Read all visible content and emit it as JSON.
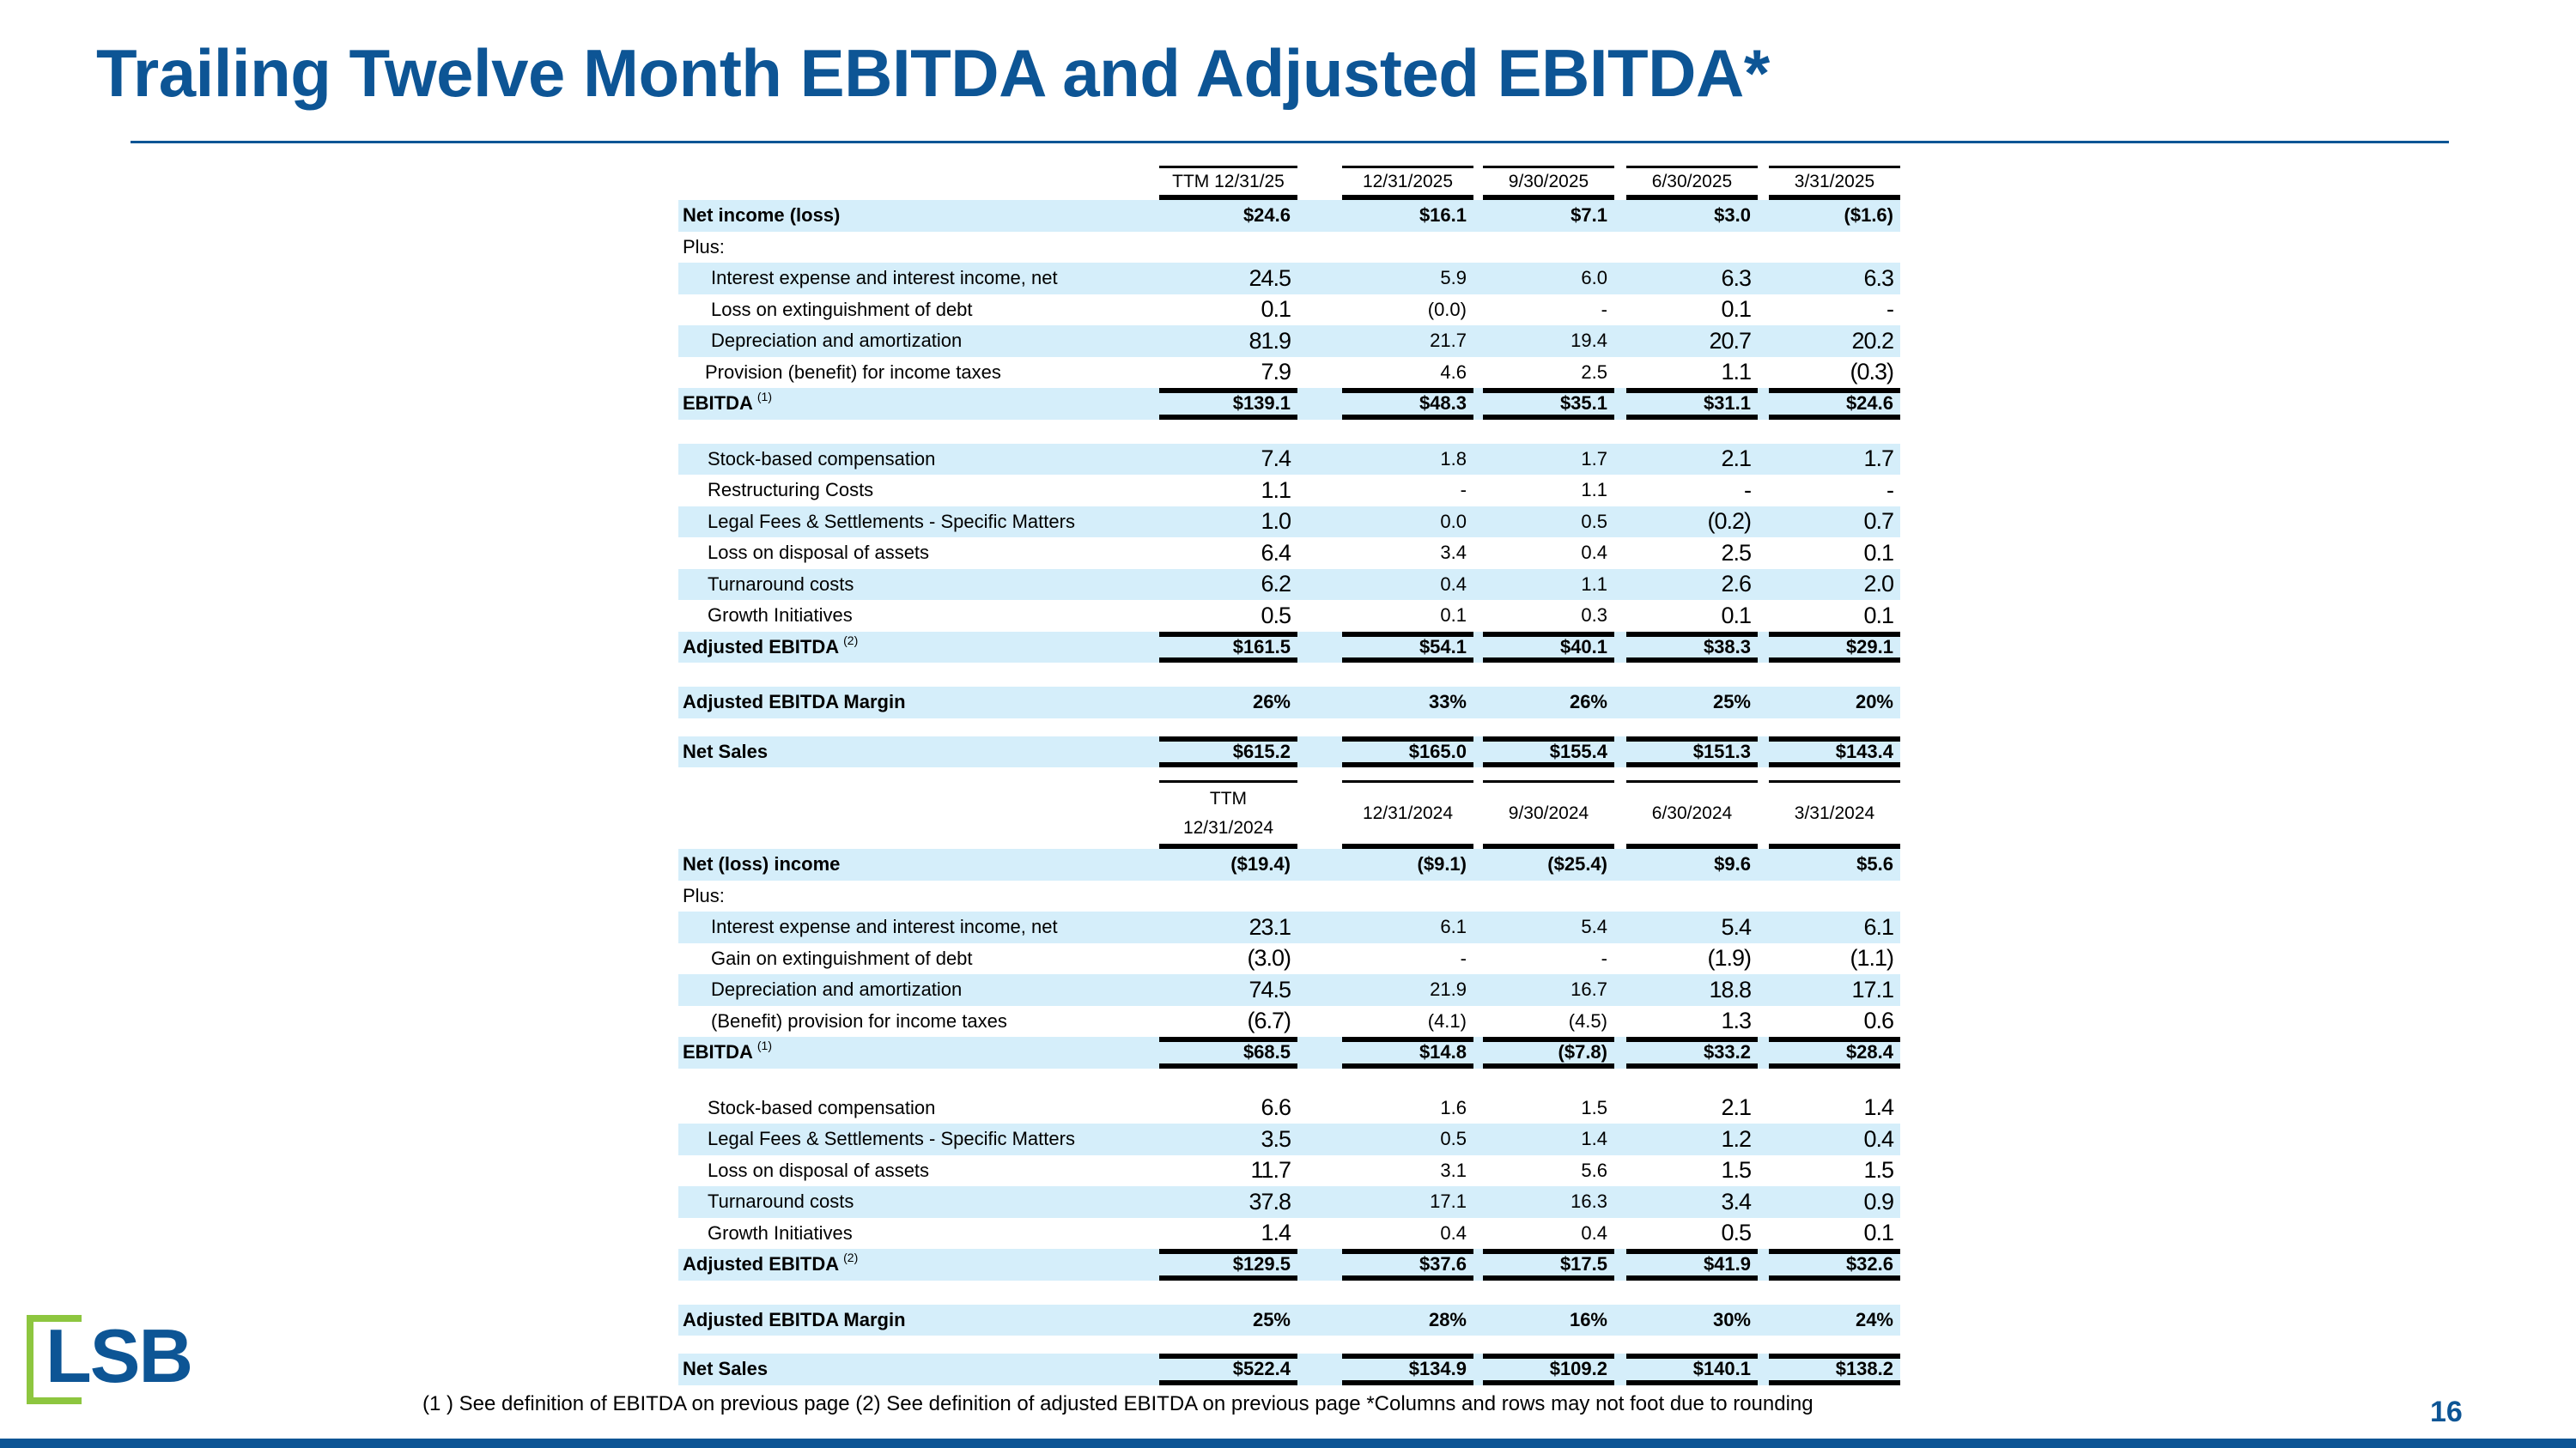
{
  "title": "Trailing Twelve Month EBITDA and Adjusted EBITDA*",
  "logo_text": "LSB",
  "page_number": "16",
  "footnote": "(1 ) See definition of EBITDA on previous page  (2) See definition of adjusted EBITDA on previous page   *Columns and rows may not foot due to rounding",
  "colors": {
    "brand_blue": "#0d5595",
    "row_shade": "#d5eefa",
    "logo_green": "#8dc63f"
  },
  "sections": [
    {
      "columns": [
        "TTM 12/31/25",
        "12/31/2025",
        "9/30/2025",
        "6/30/2025",
        "3/31/2025"
      ],
      "groups": [
        [
          {
            "label": "Net income (loss)",
            "style": "bold",
            "shade": true,
            "values": [
              "$24.6",
              "$16.1",
              "$7.1",
              "$3.0",
              "($1.6)"
            ]
          },
          {
            "label": "Plus:",
            "values": []
          },
          {
            "label": "Interest expense and interest income, net",
            "indent": 1,
            "shade": true,
            "values": [
              "24.5",
              "5.9",
              "6.0",
              "6.3",
              "6.3"
            ]
          },
          {
            "label": "Loss on extinguishment of debt",
            "indent": 1,
            "values": [
              "0.1",
              "(0.0)",
              "-",
              "0.1",
              "-"
            ]
          },
          {
            "label": "Depreciation and amortization",
            "indent": 1,
            "shade": true,
            "values": [
              "81.9",
              "21.7",
              "19.4",
              "20.7",
              "20.2"
            ]
          },
          {
            "label": "Provision (benefit) for income taxes",
            "indent": 2,
            "values": [
              "7.9",
              "4.6",
              "2.5",
              "1.1",
              "(0.3)"
            ]
          },
          {
            "label": "EBITDA",
            "sup": "(1)",
            "style": "bold",
            "total": true,
            "shade": true,
            "values": [
              "$139.1",
              "$48.3",
              "$35.1",
              "$31.1",
              "$24.6"
            ]
          }
        ],
        [
          {
            "label": "Stock-based compensation",
            "indent": 3,
            "shade": true,
            "values": [
              "7.4",
              "1.8",
              "1.7",
              "2.1",
              "1.7"
            ]
          },
          {
            "label": "Restructuring Costs",
            "indent": 3,
            "values": [
              "1.1",
              "-",
              "1.1",
              "-",
              "-"
            ]
          },
          {
            "label": "Legal Fees & Settlements - Specific Matters",
            "indent": 3,
            "shade": true,
            "values": [
              "1.0",
              "0.0",
              "0.5",
              "(0.2)",
              "0.7"
            ]
          },
          {
            "label": "Loss on disposal of assets",
            "indent": 3,
            "values": [
              "6.4",
              "3.4",
              "0.4",
              "2.5",
              "0.1"
            ]
          },
          {
            "label": "Turnaround costs",
            "indent": 3,
            "shade": true,
            "values": [
              "6.2",
              "0.4",
              "1.1",
              "2.6",
              "2.0"
            ]
          },
          {
            "label": "Growth Initiatives",
            "indent": 3,
            "values": [
              "0.5",
              "0.1",
              "0.3",
              "0.1",
              "0.1"
            ]
          },
          {
            "label": "Adjusted EBITDA",
            "sup": "(2)",
            "style": "bold",
            "total": true,
            "shade": true,
            "values": [
              "$161.5",
              "$54.1",
              "$40.1",
              "$38.3",
              "$29.1"
            ]
          }
        ],
        [
          {
            "label": "Adjusted EBITDA Margin",
            "style": "bold",
            "shade": true,
            "values": [
              "26%",
              "33%",
              "26%",
              "25%",
              "20%"
            ]
          }
        ],
        [
          {
            "label": "Net Sales",
            "style": "bold",
            "total": true,
            "shade": true,
            "values": [
              "$615.2",
              "$165.0",
              "$155.4",
              "$151.3",
              "$143.4"
            ]
          }
        ]
      ]
    },
    {
      "columns": [
        "TTM\n12/31/2024",
        "12/31/2024",
        "9/30/2024",
        "6/30/2024",
        "3/31/2024"
      ],
      "groups": [
        [
          {
            "label": "Net (loss) income",
            "style": "bold",
            "shade": true,
            "values": [
              "($19.4)",
              "($9.1)",
              "($25.4)",
              "$9.6",
              "$5.6"
            ]
          },
          {
            "label": "Plus:",
            "values": []
          },
          {
            "label": "Interest expense and interest income, net",
            "indent": 1,
            "shade": true,
            "values": [
              "23.1",
              "6.1",
              "5.4",
              "5.4",
              "6.1"
            ]
          },
          {
            "label": "Gain on extinguishment of debt",
            "indent": 1,
            "values": [
              "(3.0)",
              "-",
              "-",
              "(1.9)",
              "(1.1)"
            ]
          },
          {
            "label": "Depreciation and amortization",
            "indent": 1,
            "shade": true,
            "values": [
              "74.5",
              "21.9",
              "16.7",
              "18.8",
              "17.1"
            ]
          },
          {
            "label": "(Benefit) provision for income taxes",
            "indent": 1,
            "values": [
              "(6.7)",
              "(4.1)",
              "(4.5)",
              "1.3",
              "0.6"
            ]
          },
          {
            "label": "EBITDA",
            "sup": "(1)",
            "style": "bold",
            "total": true,
            "shade": true,
            "values": [
              "$68.5",
              "$14.8",
              "($7.8)",
              "$33.2",
              "$28.4"
            ]
          }
        ],
        [
          {
            "label": "Stock-based compensation",
            "indent": 3,
            "values": [
              "6.6",
              "1.6",
              "1.5",
              "2.1",
              "1.4"
            ]
          },
          {
            "label": "Legal Fees & Settlements - Specific Matters",
            "indent": 3,
            "shade": true,
            "values": [
              "3.5",
              "0.5",
              "1.4",
              "1.2",
              "0.4"
            ]
          },
          {
            "label": "Loss on disposal of assets",
            "indent": 3,
            "values": [
              "11.7",
              "3.1",
              "5.6",
              "1.5",
              "1.5"
            ]
          },
          {
            "label": "Turnaround costs",
            "indent": 3,
            "shade": true,
            "values": [
              "37.8",
              "17.1",
              "16.3",
              "3.4",
              "0.9"
            ]
          },
          {
            "label": "Growth Initiatives",
            "indent": 3,
            "values": [
              "1.4",
              "0.4",
              "0.4",
              "0.5",
              "0.1"
            ]
          },
          {
            "label": "Adjusted EBITDA",
            "sup": "(2)",
            "style": "bold",
            "total": true,
            "shade": true,
            "values": [
              "$129.5",
              "$37.6",
              "$17.5",
              "$41.9",
              "$32.6"
            ]
          }
        ],
        [
          {
            "label": "Adjusted EBITDA Margin",
            "style": "bold",
            "shade": true,
            "values": [
              "25%",
              "28%",
              "16%",
              "30%",
              "24%"
            ]
          }
        ],
        [
          {
            "label": "Net Sales",
            "style": "bold",
            "total": true,
            "shade": true,
            "values": [
              "$522.4",
              "$134.9",
              "$109.2",
              "$140.1",
              "$138.2"
            ]
          }
        ]
      ]
    }
  ]
}
